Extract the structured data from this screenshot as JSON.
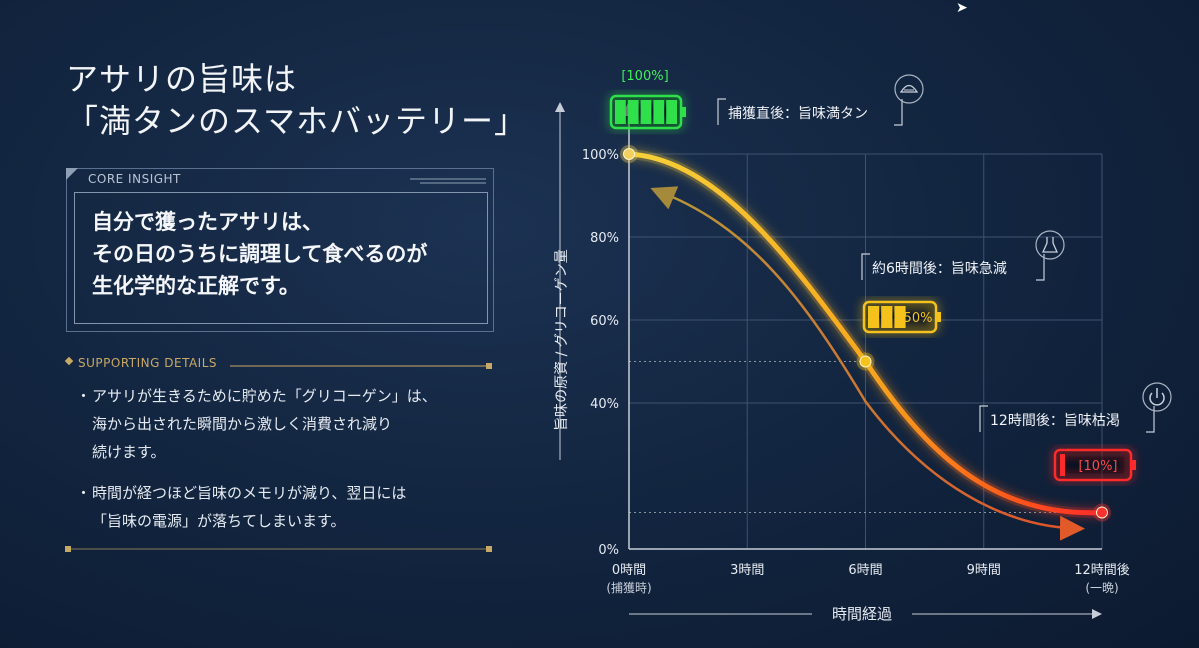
{
  "title": {
    "line1": "アサリの旨味は",
    "line2": "「満タンのスマホバッテリー」"
  },
  "core_insight": {
    "label": "CORE INSIGHT",
    "lines": [
      "自分で獲ったアサリは、",
      "その日のうちに調理して食べるのが",
      "生化学的な正解です。"
    ]
  },
  "supporting": {
    "label": "SUPPORTING DETAILS",
    "bullets": [
      {
        "mark": "・",
        "lines": [
          "アサリが生きるために貯めた「グリコーゲン」は、",
          "海から出された瞬間から激しく消費され減り",
          "続けます。"
        ]
      },
      {
        "mark": "・",
        "lines": [
          "時間が経つほど旨味のメモリが減り、翌日には",
          "「旨味の電源」が落ちてしまいます。"
        ]
      }
    ]
  },
  "colors": {
    "gold": "#f5c21b",
    "orange": "#ff7a1a",
    "red": "#ff2a2a",
    "green": "#2fe04a",
    "accent": "#c8a865"
  },
  "chart_data": {
    "type": "line",
    "xlabel": "時間経過",
    "ylabel": "旨味の原資 / グリコーゲン量",
    "x": [
      0,
      6,
      12
    ],
    "values": [
      100,
      50,
      10
    ],
    "xlim": [
      0,
      12
    ],
    "ylim": [
      0,
      100
    ],
    "x_ticks": [
      {
        "value": 0,
        "label": "0時間",
        "sub": "(捕獲時)"
      },
      {
        "value": 3,
        "label": "3時間",
        "sub": ""
      },
      {
        "value": 6,
        "label": "6時間",
        "sub": ""
      },
      {
        "value": 9,
        "label": "9時間",
        "sub": ""
      },
      {
        "value": 12,
        "label": "12時間後",
        "sub": "(一晩)"
      }
    ],
    "y_ticks": [
      {
        "value": 0,
        "label": "0%"
      },
      {
        "value": 40,
        "label": "40%"
      },
      {
        "value": 60,
        "label": "60%"
      },
      {
        "value": 80,
        "label": "80%"
      },
      {
        "value": 100,
        "label": "100%"
      }
    ],
    "grid": true,
    "annotations": [
      {
        "x": 0,
        "y": 100,
        "text": "捕獲直後：旨味満タン",
        "icon": "clam-icon",
        "battery": "[100%]",
        "battery_level": 1.0
      },
      {
        "x": 6,
        "y": 50,
        "text": "約6時間後：旨味急減",
        "icon": "flask-icon",
        "battery": "50%",
        "battery_level": 0.5
      },
      {
        "x": 12,
        "y": 10,
        "text": "12時間後：旨味枯渇",
        "icon": "power-icon",
        "battery": "[10%]",
        "battery_level": 0.1
      }
    ]
  }
}
